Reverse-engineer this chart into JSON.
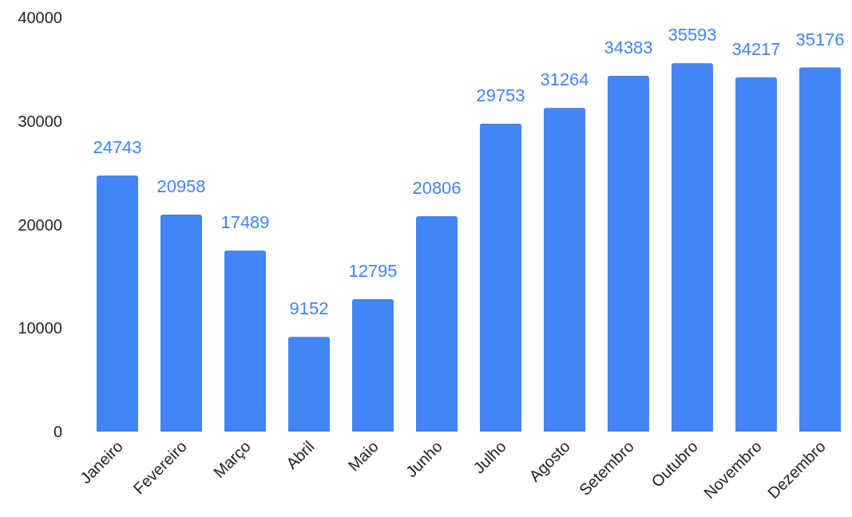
{
  "chart_data": {
    "type": "bar",
    "categories": [
      "Janeiro",
      "Fevereiro",
      "Março",
      "Abril",
      "Maio",
      "Junho",
      "Julho",
      "Agosto",
      "Setembro",
      "Outubro",
      "Novembro",
      "Dezembro"
    ],
    "values": [
      24743,
      20958,
      17489,
      9152,
      12795,
      20806,
      29753,
      31264,
      34383,
      35593,
      34217,
      35176
    ],
    "color": "#4285f4",
    "ylim": [
      0,
      40000
    ],
    "yticks": [
      0,
      10000,
      20000,
      30000,
      40000
    ],
    "grid": false,
    "data_labels": true
  }
}
